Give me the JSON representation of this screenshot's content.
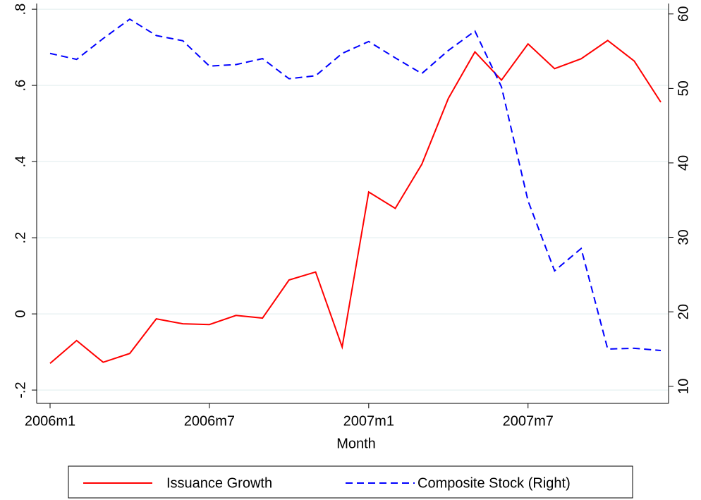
{
  "chart_data": {
    "type": "line",
    "x_label": "Month",
    "categories": [
      "2006m1",
      null,
      null,
      null,
      null,
      null,
      "2006m7",
      null,
      null,
      null,
      null,
      null,
      "2007m1",
      null,
      null,
      null,
      null,
      null,
      "2007m7",
      null,
      null,
      null,
      null,
      null
    ],
    "series": [
      {
        "name": "Issuance Growth",
        "color": "#ff0000",
        "dash": "solid",
        "values": [
          -0.13,
          -0.07,
          -0.127,
          -0.104,
          -0.013,
          -0.026,
          -0.028,
          -0.004,
          -0.011,
          0.089,
          0.11,
          -0.087,
          0.32,
          0.277,
          0.393,
          0.566,
          0.688,
          0.614,
          0.709,
          0.644,
          0.67,
          0.718,
          0.664,
          0.556
        ]
      },
      {
        "name": "Composite Stock (Right)",
        "color": "#0000ff",
        "dash": "dashed",
        "axis": "y2",
        "values": [
          54.7,
          53.9,
          56.7,
          59.3,
          57.1,
          56.4,
          53.0,
          53.2,
          54.0,
          51.3,
          51.7,
          54.7,
          56.3,
          54.1,
          52.0,
          55.1,
          57.7,
          50.2,
          34.9,
          25.5,
          28.5,
          15.0,
          15.1,
          14.8
        ]
      }
    ],
    "ylim": [
      -0.235,
      0.815
    ],
    "yticks": [
      {
        "value": -0.2,
        "label": "-.2"
      },
      0,
      {
        "value": 0.2,
        "label": ".2"
      },
      {
        "value": 0.4,
        "label": ".4"
      },
      {
        "value": 0.6,
        "label": ".6"
      },
      {
        "value": 0.8,
        "label": ".8"
      }
    ],
    "y2lim": [
      7.7,
      61.4
    ],
    "y2ticks": [
      10,
      20,
      30,
      40,
      50,
      60
    ],
    "grid": true,
    "legend": "bottom"
  }
}
